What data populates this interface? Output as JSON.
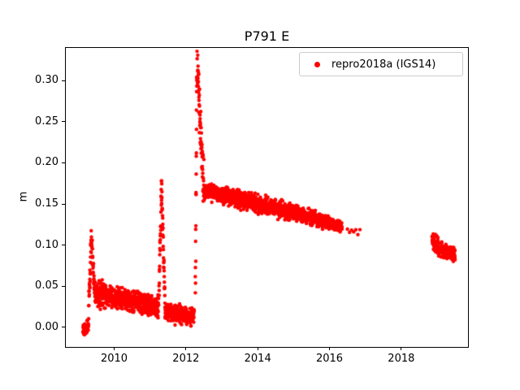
{
  "figure": {
    "background": "#ffffff"
  },
  "chart_data": {
    "type": "scatter",
    "title": "P791 E",
    "xlabel": "",
    "ylabel": "m",
    "grid": false,
    "legend": {
      "label": "repro2018a (IGS14)",
      "marker_color": "#ff0000",
      "position": "upper right"
    },
    "marker": {
      "color": "#ff0000",
      "radius_px": 2.2
    },
    "xlim": [
      2008.63,
      2019.86
    ],
    "ylim": [
      -0.0237,
      0.3405
    ],
    "xticks": [
      2010,
      2012,
      2014,
      2016,
      2018
    ],
    "yticks": [
      {
        "v": 0.0,
        "label": "0.00"
      },
      {
        "v": 0.05,
        "label": "0.05"
      },
      {
        "v": 0.1,
        "label": "0.10"
      },
      {
        "v": 0.15,
        "label": "0.15"
      },
      {
        "v": 0.2,
        "label": "0.20"
      },
      {
        "v": 0.25,
        "label": "0.25"
      },
      {
        "v": 0.3,
        "label": "0.30"
      }
    ],
    "series_label": "repro2018a (IGS14)",
    "segments": [
      {
        "x0": 2009.13,
        "x1": 2009.28,
        "y0": -0.003,
        "y1": 0.002,
        "sd": 0.0035,
        "n": 45
      },
      {
        "x0": 2009.28,
        "x1": 2009.36,
        "y0": 0.012,
        "y1": 0.105,
        "sd": 0.01,
        "n": 28
      },
      {
        "x0": 2009.36,
        "x1": 2009.46,
        "y0": 0.105,
        "y1": 0.043,
        "sd": 0.008,
        "n": 34
      },
      {
        "x0": 2009.46,
        "x1": 2011.24,
        "y0": 0.042,
        "y1": 0.024,
        "sd": 0.0065,
        "n": 620
      },
      {
        "x0": 2011.25,
        "x1": 2011.32,
        "y0": 0.035,
        "y1": 0.172,
        "sd": 0.01,
        "n": 25
      },
      {
        "x0": 2011.32,
        "x1": 2011.42,
        "y0": 0.172,
        "y1": 0.022,
        "sd": 0.008,
        "n": 34
      },
      {
        "x0": 2011.42,
        "x1": 2012.23,
        "y0": 0.018,
        "y1": 0.014,
        "sd": 0.005,
        "n": 290
      },
      {
        "x0": 2012.26,
        "x1": 2012.31,
        "y0": 0.045,
        "y1": 0.325,
        "sd": 0.018,
        "n": 22
      },
      {
        "x0": 2012.31,
        "x1": 2012.5,
        "y0": 0.322,
        "y1": 0.17,
        "sd": 0.014,
        "n": 68
      },
      {
        "x0": 2012.5,
        "x1": 2013.0,
        "y0": 0.165,
        "y1": 0.161,
        "sd": 0.0045,
        "n": 180
      },
      {
        "x0": 2013.0,
        "x1": 2014.0,
        "y0": 0.161,
        "y1": 0.15,
        "sd": 0.005,
        "n": 360
      },
      {
        "x0": 2014.0,
        "x1": 2015.0,
        "y0": 0.15,
        "y1": 0.14,
        "sd": 0.005,
        "n": 360
      },
      {
        "x0": 2015.0,
        "x1": 2016.0,
        "y0": 0.14,
        "y1": 0.127,
        "sd": 0.004,
        "n": 360
      },
      {
        "x0": 2016.0,
        "x1": 2016.35,
        "y0": 0.127,
        "y1": 0.121,
        "sd": 0.003,
        "n": 125
      },
      {
        "x0": 2016.5,
        "x1": 2016.85,
        "y0": 0.119,
        "y1": 0.117,
        "sd": 0.002,
        "n": 7
      },
      {
        "x0": 2018.86,
        "x1": 2019.05,
        "y0": 0.106,
        "y1": 0.097,
        "sd": 0.0055,
        "n": 68
      },
      {
        "x0": 2019.05,
        "x1": 2019.5,
        "y0": 0.095,
        "y1": 0.088,
        "sd": 0.004,
        "n": 160
      }
    ]
  }
}
